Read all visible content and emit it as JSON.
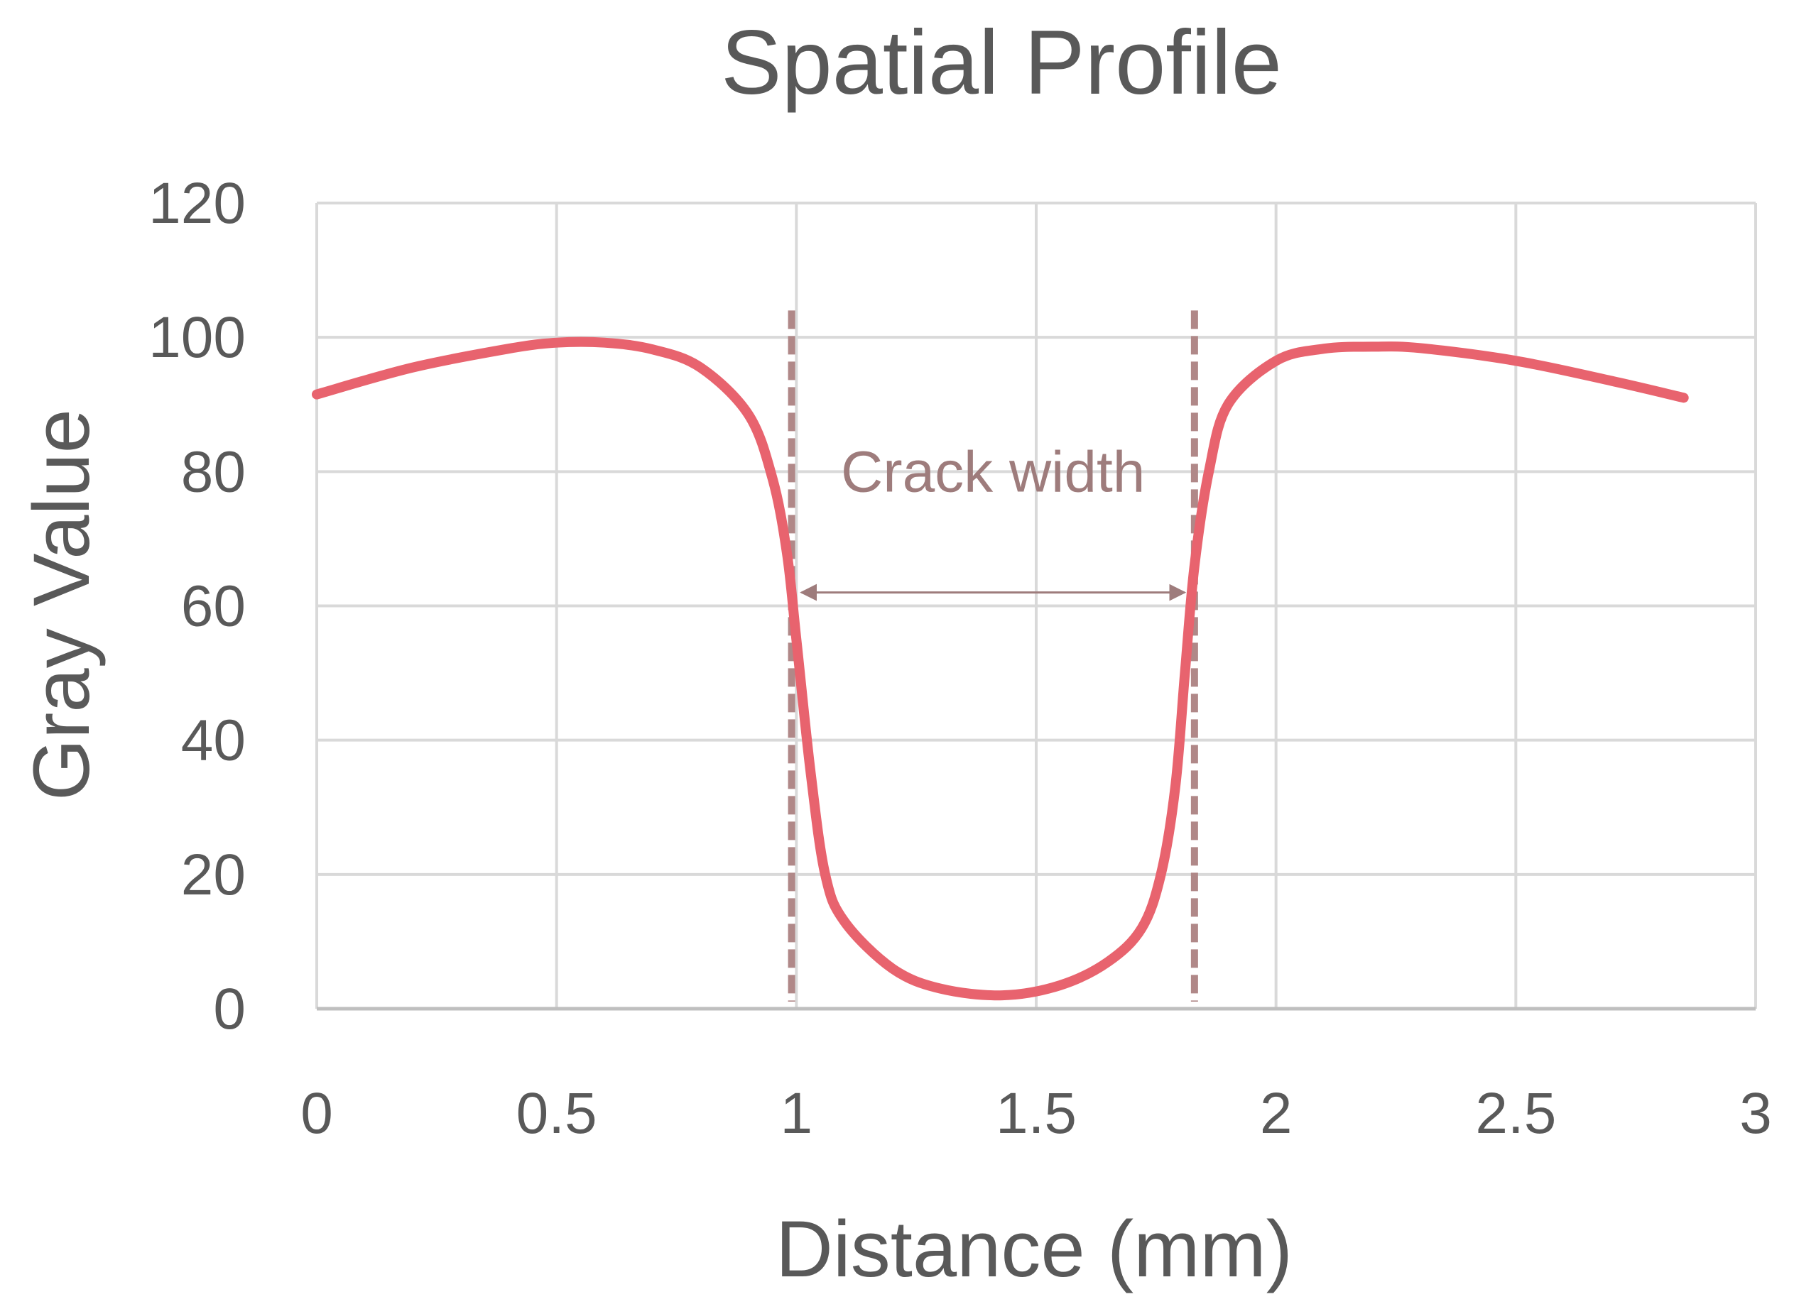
{
  "chart_data": {
    "type": "line",
    "title": "Spatial Profile",
    "xlabel": "Distance (mm)",
    "ylabel": "Gray Value",
    "xlim": [
      0,
      3
    ],
    "ylim": [
      0,
      120
    ],
    "x_ticks": [
      0,
      0.5,
      1,
      1.5,
      2,
      2.5,
      3
    ],
    "x_tick_labels": [
      "0",
      "0.5",
      "1",
      "1.5",
      "2",
      "2.5",
      "3"
    ],
    "y_ticks": [
      0,
      20,
      40,
      60,
      80,
      100,
      120
    ],
    "y_tick_labels": [
      "0",
      "20",
      "40",
      "60",
      "80",
      "100",
      "120"
    ],
    "grid": true,
    "series": [
      {
        "color": "#E8636E",
        "x": [
          0,
          0.2,
          0.4,
          0.5,
          0.6,
          0.7,
          0.8,
          0.9,
          0.95,
          0.98,
          1.0,
          1.03,
          1.06,
          1.1,
          1.2,
          1.3,
          1.43,
          1.55,
          1.65,
          1.72,
          1.76,
          1.79,
          1.81,
          1.83,
          1.86,
          1.9,
          2.0,
          2.1,
          2.2,
          2.3,
          2.5,
          2.7,
          2.85
        ],
        "values": [
          91.5,
          95.5,
          98.3,
          99.2,
          99.2,
          98.2,
          95.5,
          88.5,
          79,
          68,
          55,
          35,
          20,
          13,
          6,
          3,
          2,
          3.5,
          7,
          12,
          20,
          33,
          50,
          66,
          80,
          90,
          96.5,
          98.3,
          98.6,
          98.4,
          96.5,
          93.5,
          91
        ]
      }
    ],
    "markers": [
      {
        "x": 0.99,
        "style": "dashed",
        "color": "#B08888"
      },
      {
        "x": 1.83,
        "style": "dashed",
        "color": "#B08888"
      }
    ],
    "annotation": {
      "text": "Crack width",
      "arrow_x": [
        0.99,
        1.83
      ],
      "arrow_y": 62,
      "color": "#9E7C7C"
    },
    "axis_color": "#595959",
    "grid_color": "#D9D9D9"
  }
}
